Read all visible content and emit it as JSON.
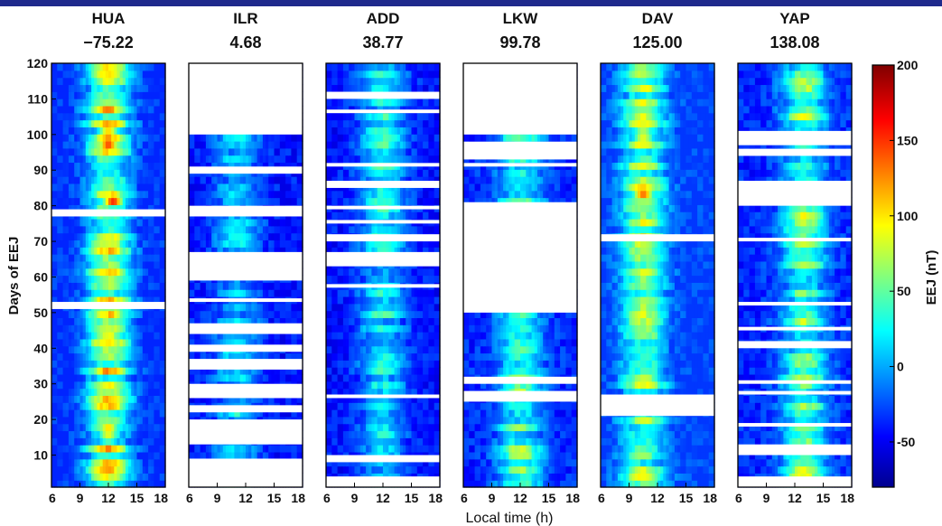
{
  "chart_data": {
    "type": "heatmap",
    "xlabel": "Local time (h)",
    "ylabel": "Days of EEJ",
    "x_ticks": [
      6,
      9,
      12,
      15,
      18
    ],
    "xlim": [
      6,
      18
    ],
    "y_ticks": [
      10,
      20,
      30,
      40,
      50,
      60,
      70,
      80,
      90,
      100,
      110,
      120
    ],
    "ylim": [
      1,
      120
    ],
    "colorbar": {
      "label": "EEJ (nT)",
      "ticks": [
        -50,
        0,
        50,
        100,
        150,
        200
      ],
      "range": [
        -80,
        200
      ],
      "colormap": "jet"
    },
    "panels": [
      {
        "station": "HUA",
        "value": "−75.22",
        "peak_time": 12.0,
        "peak_nT": 95,
        "background_nT": -35,
        "hotspots": [
          {
            "day": 82,
            "t": 12.5,
            "nT": 170
          },
          {
            "day": 100,
            "t": 12.0,
            "nT": 150
          },
          {
            "day": 97,
            "t": 12.0,
            "nT": 145
          },
          {
            "day": 12,
            "t": 12.0,
            "nT": 135
          },
          {
            "day": 17,
            "t": 12.0,
            "nT": 125
          }
        ],
        "gaps": [
          [
            77,
            79
          ],
          [
            51,
            53
          ]
        ]
      },
      {
        "station": "ILR",
        "value": "4.68",
        "peak_time": 11.0,
        "peak_nT": 20,
        "background_nT": -40,
        "hotspots": [],
        "gaps": [
          [
            100,
            120
          ],
          [
            89,
            91
          ],
          [
            77,
            80
          ],
          [
            59,
            67
          ],
          [
            53,
            54
          ],
          [
            44,
            47
          ],
          [
            39,
            41
          ],
          [
            34,
            37
          ],
          [
            26,
            30
          ],
          [
            22,
            24
          ],
          [
            13,
            20
          ],
          [
            1,
            9
          ]
        ]
      },
      {
        "station": "ADD",
        "value": "38.77",
        "peak_time": 12.0,
        "peak_nT": 35,
        "background_nT": -40,
        "hotspots": [],
        "gaps": [
          [
            110,
            112
          ],
          [
            106,
            107
          ],
          [
            91,
            92
          ],
          [
            85,
            87
          ],
          [
            79,
            80
          ],
          [
            75,
            76
          ],
          [
            70,
            72
          ],
          [
            63,
            67
          ],
          [
            57,
            58
          ],
          [
            26,
            27
          ],
          [
            8,
            10
          ],
          [
            1,
            4
          ]
        ]
      },
      {
        "station": "LKW",
        "value": "99.78",
        "peak_time": 12.0,
        "peak_nT": 60,
        "background_nT": -35,
        "hotspots": [],
        "gaps": [
          [
            100,
            120
          ],
          [
            93,
            98
          ],
          [
            91,
            92
          ],
          [
            50,
            81
          ],
          [
            30,
            32
          ],
          [
            25,
            28
          ]
        ]
      },
      {
        "station": "DAV",
        "value": "125.00",
        "peak_time": 10.5,
        "peak_nT": 80,
        "background_nT": -30,
        "hotspots": [
          {
            "day": 84,
            "t": 10.5,
            "nT": 150
          },
          {
            "day": 100,
            "t": 10.5,
            "nT": 105
          }
        ],
        "gaps": [
          [
            70,
            72
          ],
          [
            21,
            27
          ]
        ]
      },
      {
        "station": "YAP",
        "value": "138.08",
        "peak_time": 13.0,
        "peak_nT": 70,
        "background_nT": -35,
        "hotspots": [],
        "gaps": [
          [
            97,
            101
          ],
          [
            94,
            96
          ],
          [
            80,
            87
          ],
          [
            70,
            71
          ],
          [
            52,
            53
          ],
          [
            45,
            46
          ],
          [
            40,
            42
          ],
          [
            30,
            31
          ],
          [
            27,
            28
          ],
          [
            18,
            19
          ],
          [
            10,
            13
          ],
          [
            1,
            4
          ]
        ]
      }
    ]
  }
}
